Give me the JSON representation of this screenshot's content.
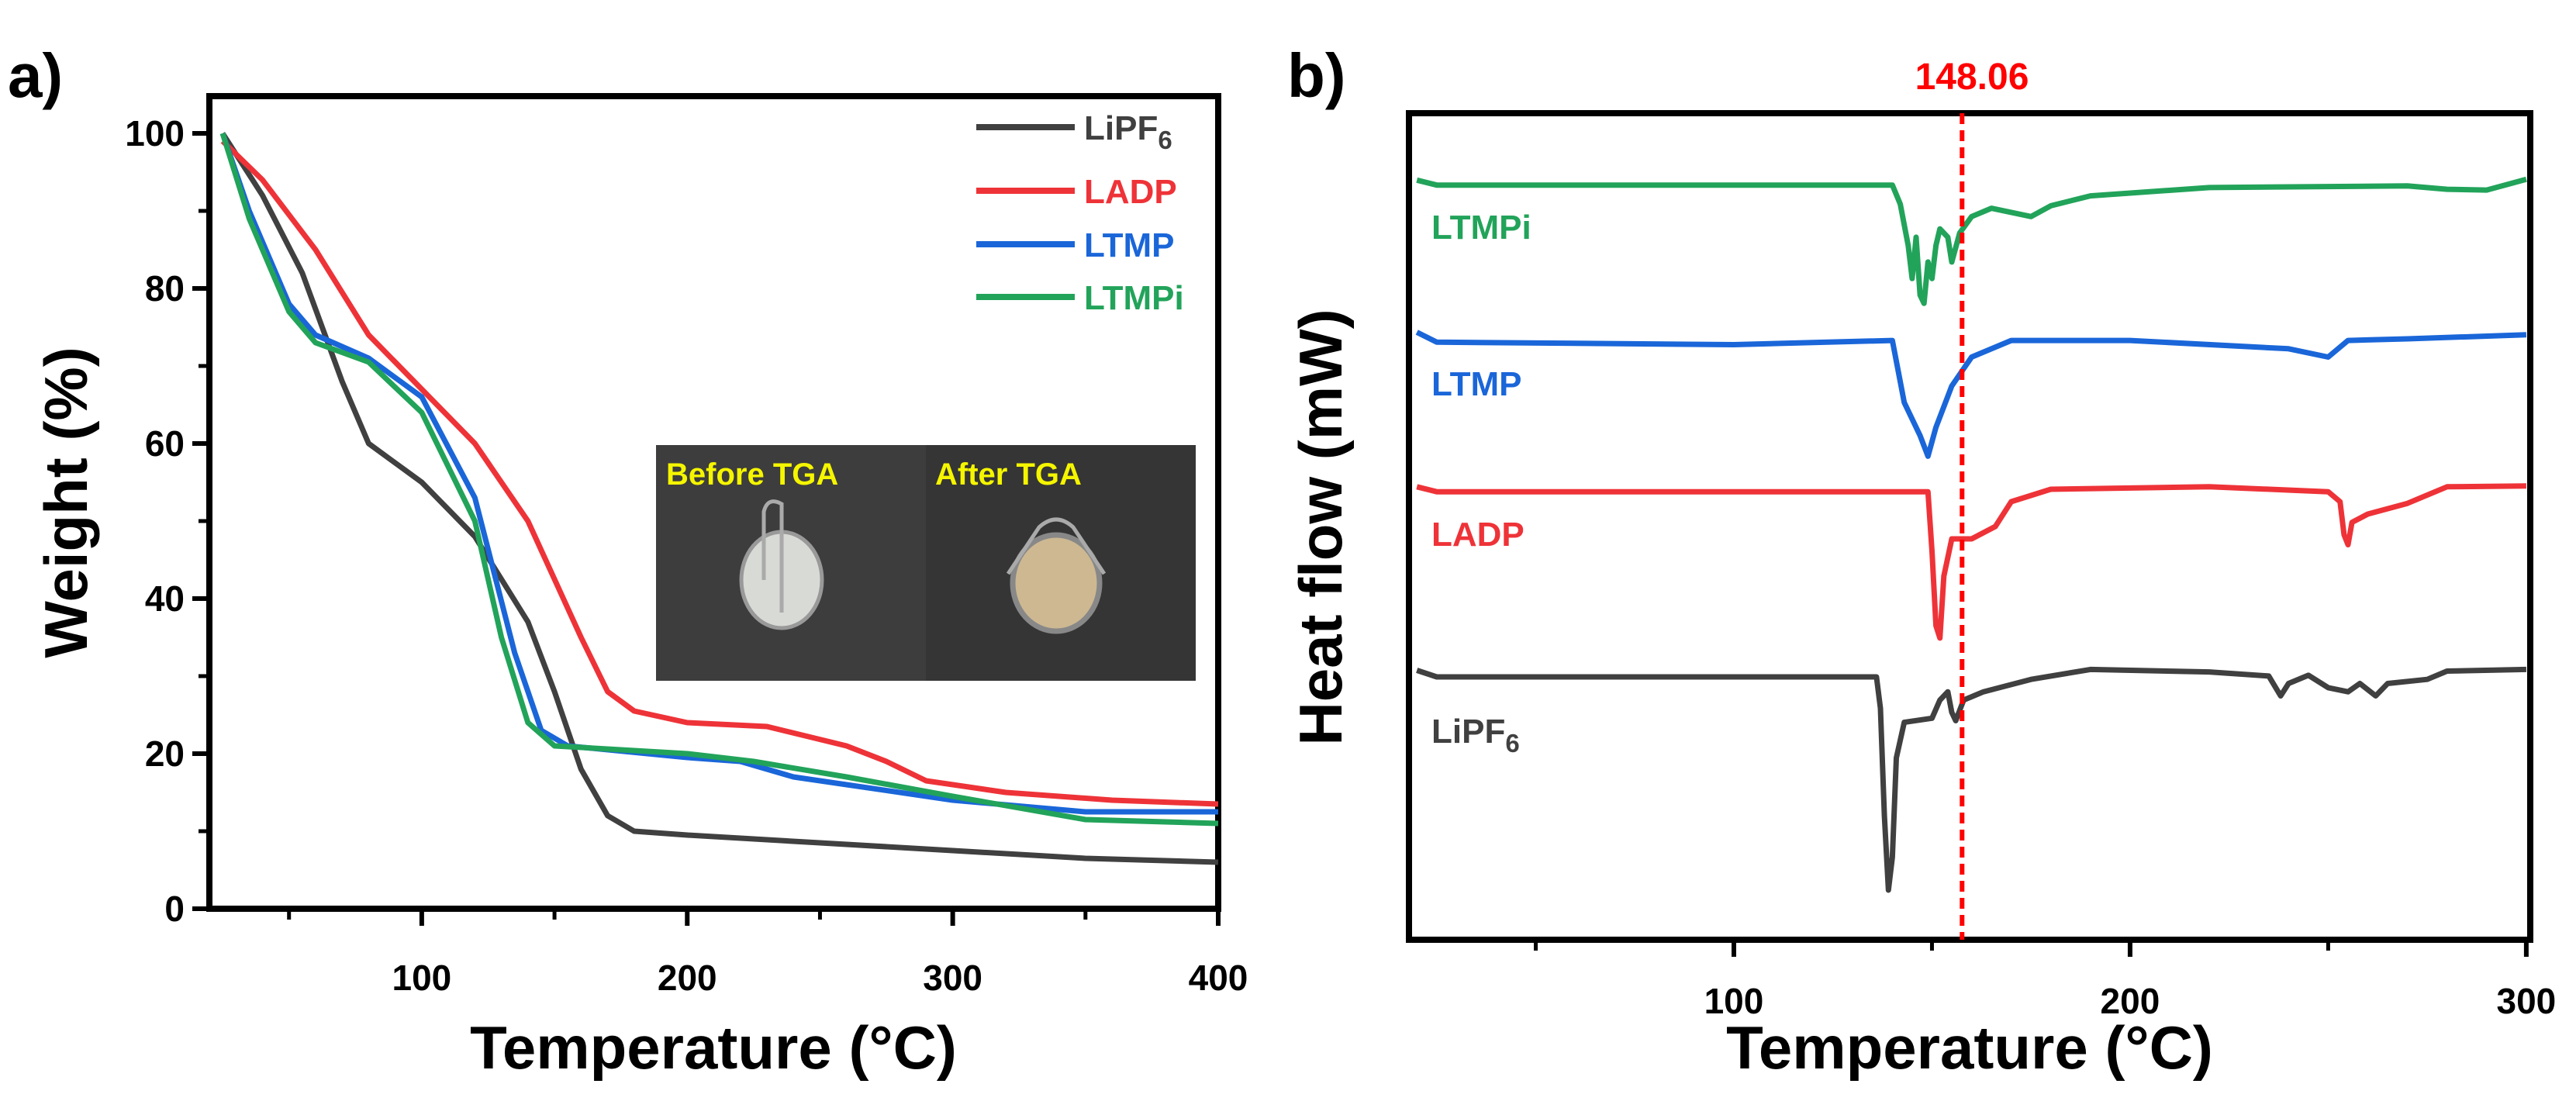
{
  "chart_data": [
    {
      "panel_label": "a)",
      "type": "line",
      "title": "",
      "xlabel": "Temperature (°C)",
      "ylabel": "Weight (%)",
      "xlim": [
        20,
        400
      ],
      "ylim": [
        0,
        105
      ],
      "xticks": [
        100,
        200,
        300,
        400
      ],
      "yticks": [
        0,
        20,
        40,
        60,
        80,
        100
      ],
      "grid": false,
      "legend_position": "top-right",
      "inset_labels": [
        "Before TGA",
        "After TGA"
      ],
      "series": [
        {
          "name": "LiPF6",
          "color": "#404040",
          "x": [
            25,
            40,
            55,
            70,
            80,
            100,
            120,
            140,
            150,
            160,
            170,
            180,
            200,
            250,
            300,
            350,
            400
          ],
          "y": [
            100,
            92,
            82,
            68,
            60,
            55,
            48,
            37,
            28,
            18,
            12,
            10,
            9.5,
            8.5,
            7.5,
            6.5,
            6
          ]
        },
        {
          "name": "LADP",
          "color": "#ee3338",
          "x": [
            25,
            40,
            60,
            80,
            100,
            120,
            140,
            160,
            170,
            180,
            200,
            230,
            260,
            275,
            290,
            320,
            360,
            400
          ],
          "y": [
            99,
            94,
            85,
            74,
            67,
            60,
            50,
            35,
            28,
            25.5,
            24,
            23.5,
            21,
            19,
            16.5,
            15,
            14,
            13.5
          ]
        },
        {
          "name": "LTMP",
          "color": "#1a66d9",
          "x": [
            25,
            35,
            50,
            60,
            80,
            100,
            120,
            135,
            145,
            155,
            200,
            220,
            240,
            300,
            350,
            400
          ],
          "y": [
            100,
            90,
            78,
            74,
            71,
            66,
            53,
            33,
            23,
            21,
            19.5,
            19,
            17,
            14,
            12.5,
            12.5
          ]
        },
        {
          "name": "LTMPi",
          "color": "#22a35a",
          "x": [
            25,
            35,
            50,
            60,
            80,
            100,
            120,
            130,
            140,
            150,
            200,
            225,
            260,
            300,
            350,
            400
          ],
          "y": [
            100,
            89,
            77,
            73,
            70.5,
            64,
            50,
            35,
            24,
            21,
            20,
            19,
            17,
            14.5,
            11.5,
            11
          ]
        }
      ]
    },
    {
      "panel_label": "b)",
      "type": "line",
      "title": "",
      "xlabel": "Temperature (°C)",
      "ylabel": "Heat flow (mW)",
      "xlim": [
        18,
        301
      ],
      "ylim": [
        0,
        100
      ],
      "xticks": [
        100,
        200,
        300
      ],
      "yticks": [],
      "grid": false,
      "annotation": {
        "text": "148.06",
        "color": "#ff0000",
        "line_x": 157.6
      },
      "series": [
        {
          "name": "LTMPi",
          "color": "#22a35a",
          "x": [
            20,
            25,
            100,
            140,
            142,
            144,
            145,
            146,
            147,
            148,
            149,
            150,
            151,
            152,
            154,
            155,
            157,
            160,
            165,
            170,
            175,
            180,
            190,
            220,
            270,
            280,
            290,
            300
          ],
          "y": [
            91.9,
            91.3,
            91.3,
            91.3,
            89,
            84,
            80,
            85,
            78,
            77,
            82,
            80,
            84,
            86,
            85,
            82,
            85.5,
            87.5,
            88.5,
            88,
            87.5,
            88.8,
            90,
            91,
            91.2,
            90.8,
            90.7,
            92
          ]
        },
        {
          "name": "LTMP",
          "color": "#1a66d9",
          "x": [
            20,
            25,
            100,
            140,
            141,
            143,
            147,
            149,
            151,
            155,
            160,
            170,
            200,
            240,
            250,
            255,
            270,
            300
          ],
          "y": [
            73.5,
            72.3,
            72,
            72.5,
            70,
            65,
            61,
            58.5,
            62,
            67,
            70.5,
            72.5,
            72.5,
            71.5,
            70.5,
            72.5,
            72.7,
            73.2
          ]
        },
        {
          "name": "LADP",
          "color": "#ee3338",
          "x": [
            20,
            25,
            100,
            149,
            150,
            151,
            152,
            153,
            155,
            160,
            166,
            170,
            180,
            220,
            250,
            253,
            254,
            255,
            256,
            260,
            270,
            280,
            300
          ],
          "y": [
            54.8,
            54.2,
            54.2,
            54.2,
            47,
            38,
            36.5,
            44,
            48.5,
            48.5,
            50,
            53,
            54.5,
            54.8,
            54.2,
            53,
            49,
            47.8,
            50.5,
            51.5,
            52.8,
            54.8,
            54.9
          ]
        },
        {
          "name": "LiPF6",
          "color": "#404040",
          "x": [
            20,
            25,
            100,
            136,
            137,
            138,
            139,
            140,
            141,
            143,
            150,
            152,
            154,
            155,
            156,
            158,
            163,
            175,
            190,
            220,
            235,
            238,
            240,
            245,
            250,
            255,
            258,
            262,
            265,
            275,
            280,
            300
          ],
          "y": [
            32.6,
            31.8,
            31.8,
            31.8,
            28,
            15,
            6,
            10,
            22,
            26.3,
            26.8,
            29,
            30,
            27.5,
            26.5,
            29,
            30,
            31.5,
            32.7,
            32.4,
            31.9,
            29.5,
            31,
            32,
            30.5,
            30,
            31,
            29.5,
            31,
            31.5,
            32.5,
            32.7
          ]
        }
      ]
    }
  ]
}
